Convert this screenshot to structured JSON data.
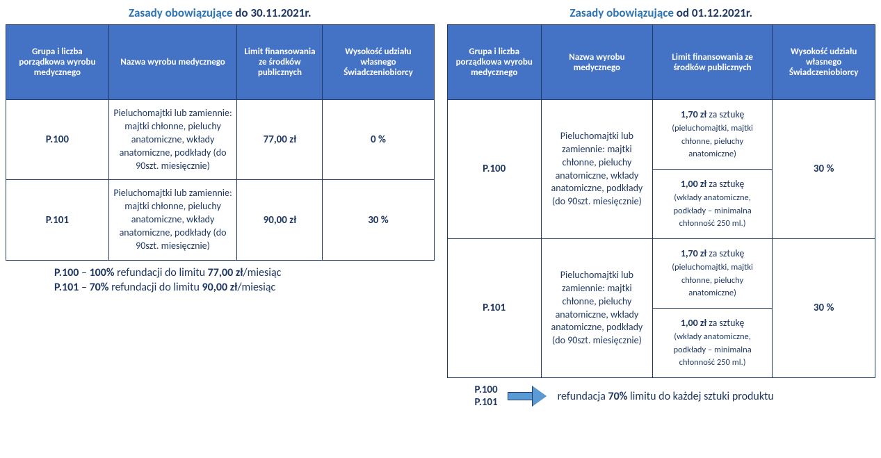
{
  "colors": {
    "header_bg": "#4472c4",
    "header_fg": "#ffffff",
    "border": "#1f3864",
    "text": "#1f3864",
    "accent": "#2e75b6",
    "arrow_fill": "#5b9bd5"
  },
  "left": {
    "title_accent": "Zasady obowiązujące ",
    "title_dark": "do 30.11.2021r.",
    "headers": {
      "c1": "Grupa i liczba porządkowa wyrobu medycznego",
      "c2": "Nazwa wyrobu medycznego",
      "c3": "Limit finansowania ze środków publicznych",
      "c4": "Wysokość udziału własnego Świadczeniobiorcy"
    },
    "rows": [
      {
        "code": "P.100",
        "desc": "Pieluchomajtki lub zamiennie: majtki chłonne, pieluchy anatomiczne, wkłady anatomiczne, podkłady (do 90szt. miesięcznie)",
        "limit": "77,00 zł",
        "share": "0 %"
      },
      {
        "code": "P.101",
        "desc": "Pieluchomajtki lub zamiennie: majtki chłonne, pieluchy anatomiczne, wkłady anatomiczne, podkłady (do 90szt. miesięcznie)",
        "limit": "90,00 zł",
        "share": "30 %"
      }
    ],
    "footer": {
      "l1_a": "P.100",
      "l1_b": " – ",
      "l1_c": "100%",
      "l1_d": " refundacji do limitu ",
      "l1_e": "77,00 zł",
      "l1_f": "/miesiąc",
      "l2_a": "P.101",
      "l2_b": " – ",
      "l2_c": "70%",
      "l2_d": " refundacji do limitu ",
      "l2_e": "90,00 zł",
      "l2_f": "/miesiąc"
    }
  },
  "right": {
    "title_accent": "Zasady obowiązujące ",
    "title_dark": "od 01.12.2021r.",
    "headers": {
      "c1": "Grupa i liczba porządkowa wyrobu medycznego",
      "c2": "Nazwa wyrobu medycznego",
      "c3": "Limit finansowania ze środków publicznych",
      "c4": "Wysokość udziału własnego Świadczeniobiorcy"
    },
    "rows": [
      {
        "code": "P.100",
        "desc": "Pieluchomajtki lub zamiennie: majtki chłonne, pieluchy anatomiczne, wkłady anatomiczne, podkłady (do 90szt. miesięcznie)",
        "limit_a_strong": "1,70 zł",
        "limit_a_tail": " za sztukę",
        "limit_a_small": "(pieluchomajtki, majtki chłonne, pieluchy anatomiczne)",
        "limit_b_strong": "1,00 zł",
        "limit_b_tail": " za sztukę",
        "limit_b_small": "(wkłady anatomiczne, podkłady – minimalna chłonność 250 ml.)",
        "share": "30 %"
      },
      {
        "code": "P.101",
        "desc": "Pieluchomajtki lub zamiennie: majtki chłonne, pieluchy anatomiczne, wkłady anatomiczne, podkłady (do 90szt. miesięcznie)",
        "limit_a_strong": "1,70 zł",
        "limit_a_tail": " za sztukę",
        "limit_a_small": "(pieluchomajtki, majtki chłonne, pieluchy anatomiczne)",
        "limit_b_strong": "1,00 zł",
        "limit_b_tail": " za sztukę",
        "limit_b_small": "(wkłady anatomiczne, podkłady – minimalna chłonność 250 ml.)",
        "share": "30 %"
      }
    ],
    "footer": {
      "codes_1": "P.100",
      "codes_2": "P.101",
      "text_a": "refundacja ",
      "text_b": "70%",
      "text_c": " limitu do każdej sztuki produktu"
    }
  }
}
